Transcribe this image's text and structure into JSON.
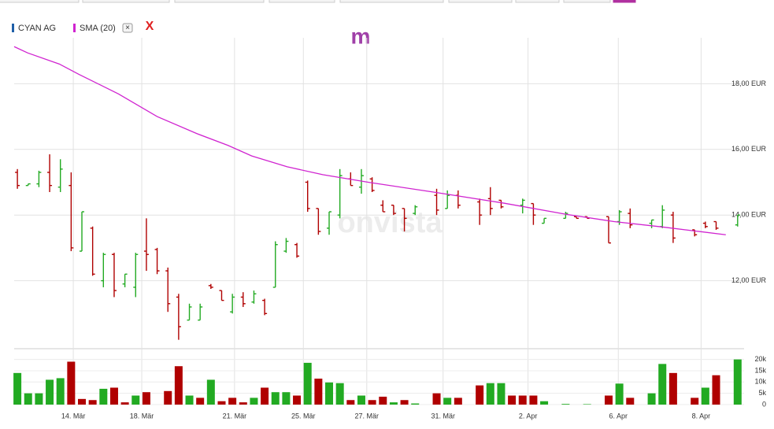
{
  "toolbar": {
    "remove_label": "×",
    "close_label": "X",
    "logo": "m",
    "watermark": "onvista"
  },
  "chart_data": {
    "type": "ohlc",
    "xlim": [
      -0.3,
      67.6
    ],
    "xticks": [
      {
        "value": 5.2,
        "label": "14. Mär"
      },
      {
        "value": 11.57,
        "label": "18. Mär"
      },
      {
        "value": 20.2,
        "label": "21. Mär"
      },
      {
        "value": 26.6,
        "label": "25. Mär"
      },
      {
        "value": 32.5,
        "label": "27. Mär"
      },
      {
        "value": 39.6,
        "label": "31. Mär"
      },
      {
        "value": 47.5,
        "label": "2. Apr"
      },
      {
        "value": 55.9,
        "label": "6. Apr"
      },
      {
        "value": 63.6,
        "label": "8. Apr"
      }
    ],
    "ylim": [
      10,
      19.4
    ],
    "yticks": [
      {
        "value": 12,
        "label": "12,00 EUR"
      },
      {
        "value": 14,
        "label": "14,00 EUR"
      },
      {
        "value": 16,
        "label": "16,00 EUR"
      },
      {
        "value": 18,
        "label": "18,00 EUR"
      }
    ],
    "grid": true,
    "series": [
      {
        "name": "CYAN AG",
        "color": "#1f5fa8",
        "up_color": "#22aa22",
        "down_color": "#b00000",
        "x": [
          0,
          1,
          2,
          3,
          4,
          5,
          6,
          7,
          8,
          9,
          10,
          11,
          12,
          13,
          14,
          15,
          16,
          17,
          18,
          19,
          20,
          21,
          22,
          23,
          24,
          25,
          26,
          27,
          28,
          29,
          30,
          31,
          32,
          33,
          34,
          35,
          36,
          37,
          39,
          40,
          41,
          43,
          44,
          45,
          47,
          48,
          49,
          51,
          52,
          53,
          55,
          56,
          57,
          59,
          60,
          61,
          63,
          64,
          65,
          67
        ],
        "open": [
          15.3,
          14.9,
          14.95,
          15.3,
          14.85,
          14.9,
          12.9,
          13.6,
          12.0,
          12.8,
          11.9,
          11.8,
          12.9,
          12.95,
          12.3,
          11.5,
          10.8,
          10.8,
          11.85,
          11.7,
          11.05,
          11.5,
          11.35,
          11.4,
          11.8,
          12.9,
          13.1,
          15.0,
          14.2,
          13.6,
          14.0,
          15.1,
          14.85,
          15.1,
          14.3,
          14.3,
          14.2,
          14.05,
          14.6,
          14.2,
          14.6,
          14.4,
          14.5,
          14.45,
          14.3,
          14.35,
          13.75,
          13.9,
          13.95,
          13.95,
          13.95,
          13.8,
          14.05,
          13.75,
          13.65,
          14.0,
          13.55,
          13.75,
          13.8,
          13.7
        ],
        "high": [
          15.4,
          14.95,
          15.35,
          15.85,
          15.7,
          15.3,
          14.1,
          13.65,
          12.85,
          12.85,
          12.2,
          12.85,
          13.9,
          13.0,
          12.4,
          11.6,
          11.3,
          11.3,
          11.9,
          11.7,
          11.6,
          11.65,
          11.7,
          11.45,
          13.2,
          13.3,
          13.15,
          15.05,
          14.2,
          14.1,
          15.4,
          15.3,
          15.4,
          15.15,
          14.45,
          14.3,
          14.2,
          14.3,
          14.8,
          14.75,
          14.75,
          14.5,
          14.85,
          14.45,
          14.5,
          14.35,
          13.9,
          14.1,
          13.95,
          13.95,
          13.95,
          14.15,
          14.2,
          13.85,
          14.3,
          14.1,
          13.55,
          13.8,
          13.8,
          14.0
        ],
        "low": [
          14.8,
          14.9,
          14.85,
          14.7,
          14.7,
          12.9,
          12.9,
          12.15,
          11.8,
          11.5,
          11.8,
          11.5,
          12.3,
          12.2,
          11.05,
          10.2,
          10.8,
          10.8,
          11.75,
          11.4,
          11.0,
          11.2,
          11.3,
          10.95,
          11.8,
          12.85,
          12.7,
          14.1,
          13.4,
          13.4,
          13.9,
          14.9,
          14.65,
          14.7,
          14.1,
          14.0,
          13.5,
          14.0,
          14.0,
          14.2,
          14.2,
          13.7,
          14.0,
          14.2,
          14.05,
          13.7,
          13.75,
          13.9,
          13.9,
          13.9,
          13.15,
          13.7,
          13.6,
          13.6,
          13.6,
          13.15,
          13.35,
          13.6,
          13.55,
          13.65
        ],
        "close": [
          14.9,
          14.95,
          15.3,
          14.9,
          15.4,
          13.0,
          14.1,
          12.2,
          12.8,
          11.7,
          12.2,
          12.8,
          12.8,
          12.3,
          11.3,
          10.6,
          11.2,
          11.2,
          11.8,
          11.4,
          11.5,
          11.3,
          11.6,
          11.0,
          13.1,
          13.2,
          12.75,
          14.2,
          13.5,
          14.1,
          15.2,
          14.9,
          15.2,
          14.75,
          14.1,
          14.05,
          13.9,
          14.25,
          14.15,
          14.6,
          14.3,
          14.0,
          14.2,
          14.25,
          14.45,
          14.0,
          13.9,
          14.05,
          13.9,
          13.9,
          13.15,
          14.1,
          13.7,
          13.85,
          14.15,
          13.3,
          13.4,
          13.65,
          13.6,
          14.0
        ]
      }
    ],
    "sma": {
      "name": "SMA (20)",
      "color": "#d024d0",
      "x": [
        -0.3,
        0.95,
        3.9,
        5.7,
        9.4,
        13.0,
        16.7,
        19.6,
        21.8,
        25.1,
        28.4,
        32.8,
        38.7,
        45.3,
        51.1,
        55.5,
        59.9,
        62.9,
        65.9
      ],
      "values": [
        19.13,
        18.94,
        18.6,
        18.29,
        17.69,
        17.0,
        16.48,
        16.12,
        15.8,
        15.47,
        15.23,
        14.99,
        14.7,
        14.36,
        14.02,
        13.8,
        13.64,
        13.52,
        13.4
      ]
    },
    "volume": {
      "ylim": [
        0,
        23000
      ],
      "yticks": [
        0,
        {
          "value": 5000,
          "label": "5k"
        },
        {
          "value": 10000,
          "label": "10k"
        },
        {
          "value": 15000,
          "label": "15k"
        },
        {
          "value": 20000,
          "label": "20k"
        }
      ],
      "x": [
        0,
        1,
        2,
        3,
        4,
        5,
        6,
        7,
        8,
        9,
        10,
        11,
        12,
        14,
        15,
        16,
        17,
        18,
        19,
        20,
        21,
        22,
        23,
        24,
        25,
        26,
        27,
        28,
        29,
        30,
        31,
        32,
        33,
        34,
        35,
        36,
        37,
        39,
        40,
        41,
        43,
        44,
        45,
        46,
        47,
        48,
        49,
        51,
        53,
        55,
        56,
        57,
        59,
        60,
        61,
        63,
        64,
        65,
        67
      ],
      "values": [
        14000,
        5000,
        5000,
        11000,
        11700,
        19000,
        2500,
        2000,
        7000,
        7500,
        1000,
        4000,
        5500,
        6000,
        17000,
        4000,
        3000,
        11000,
        1500,
        3000,
        1000,
        3000,
        7500,
        5500,
        5500,
        4000,
        18500,
        11500,
        9800,
        9500,
        2000,
        4000,
        2000,
        3500,
        1000,
        2000,
        500,
        5000,
        3000,
        3000,
        8500,
        9500,
        9500,
        4000,
        4000,
        4000,
        1500,
        300,
        200,
        4000,
        9300,
        3000,
        5000,
        18000,
        14000,
        3000,
        7500,
        13000,
        20000
      ],
      "colors": [
        "#22aa22",
        "#22aa22",
        "#22aa22",
        "#22aa22",
        "#22aa22",
        "#b00000",
        "#b00000",
        "#b00000",
        "#22aa22",
        "#b00000",
        "#b00000",
        "#22aa22",
        "#b00000",
        "#b00000",
        "#b00000",
        "#22aa22",
        "#b00000",
        "#22aa22",
        "#b00000",
        "#b00000",
        "#b00000",
        "#22aa22",
        "#b00000",
        "#22aa22",
        "#22aa22",
        "#b00000",
        "#22aa22",
        "#b00000",
        "#22aa22",
        "#22aa22",
        "#b00000",
        "#22aa22",
        "#b00000",
        "#b00000",
        "#22aa22",
        "#b00000",
        "#22aa22",
        "#b00000",
        "#22aa22",
        "#b00000",
        "#b00000",
        "#22aa22",
        "#22aa22",
        "#b00000",
        "#b00000",
        "#b00000",
        "#22aa22",
        "#22aa22",
        "#22aa22",
        "#b00000",
        "#22aa22",
        "#b00000",
        "#22aa22",
        "#22aa22",
        "#b00000",
        "#b00000",
        "#22aa22",
        "#b00000",
        "#22aa22"
      ]
    }
  }
}
